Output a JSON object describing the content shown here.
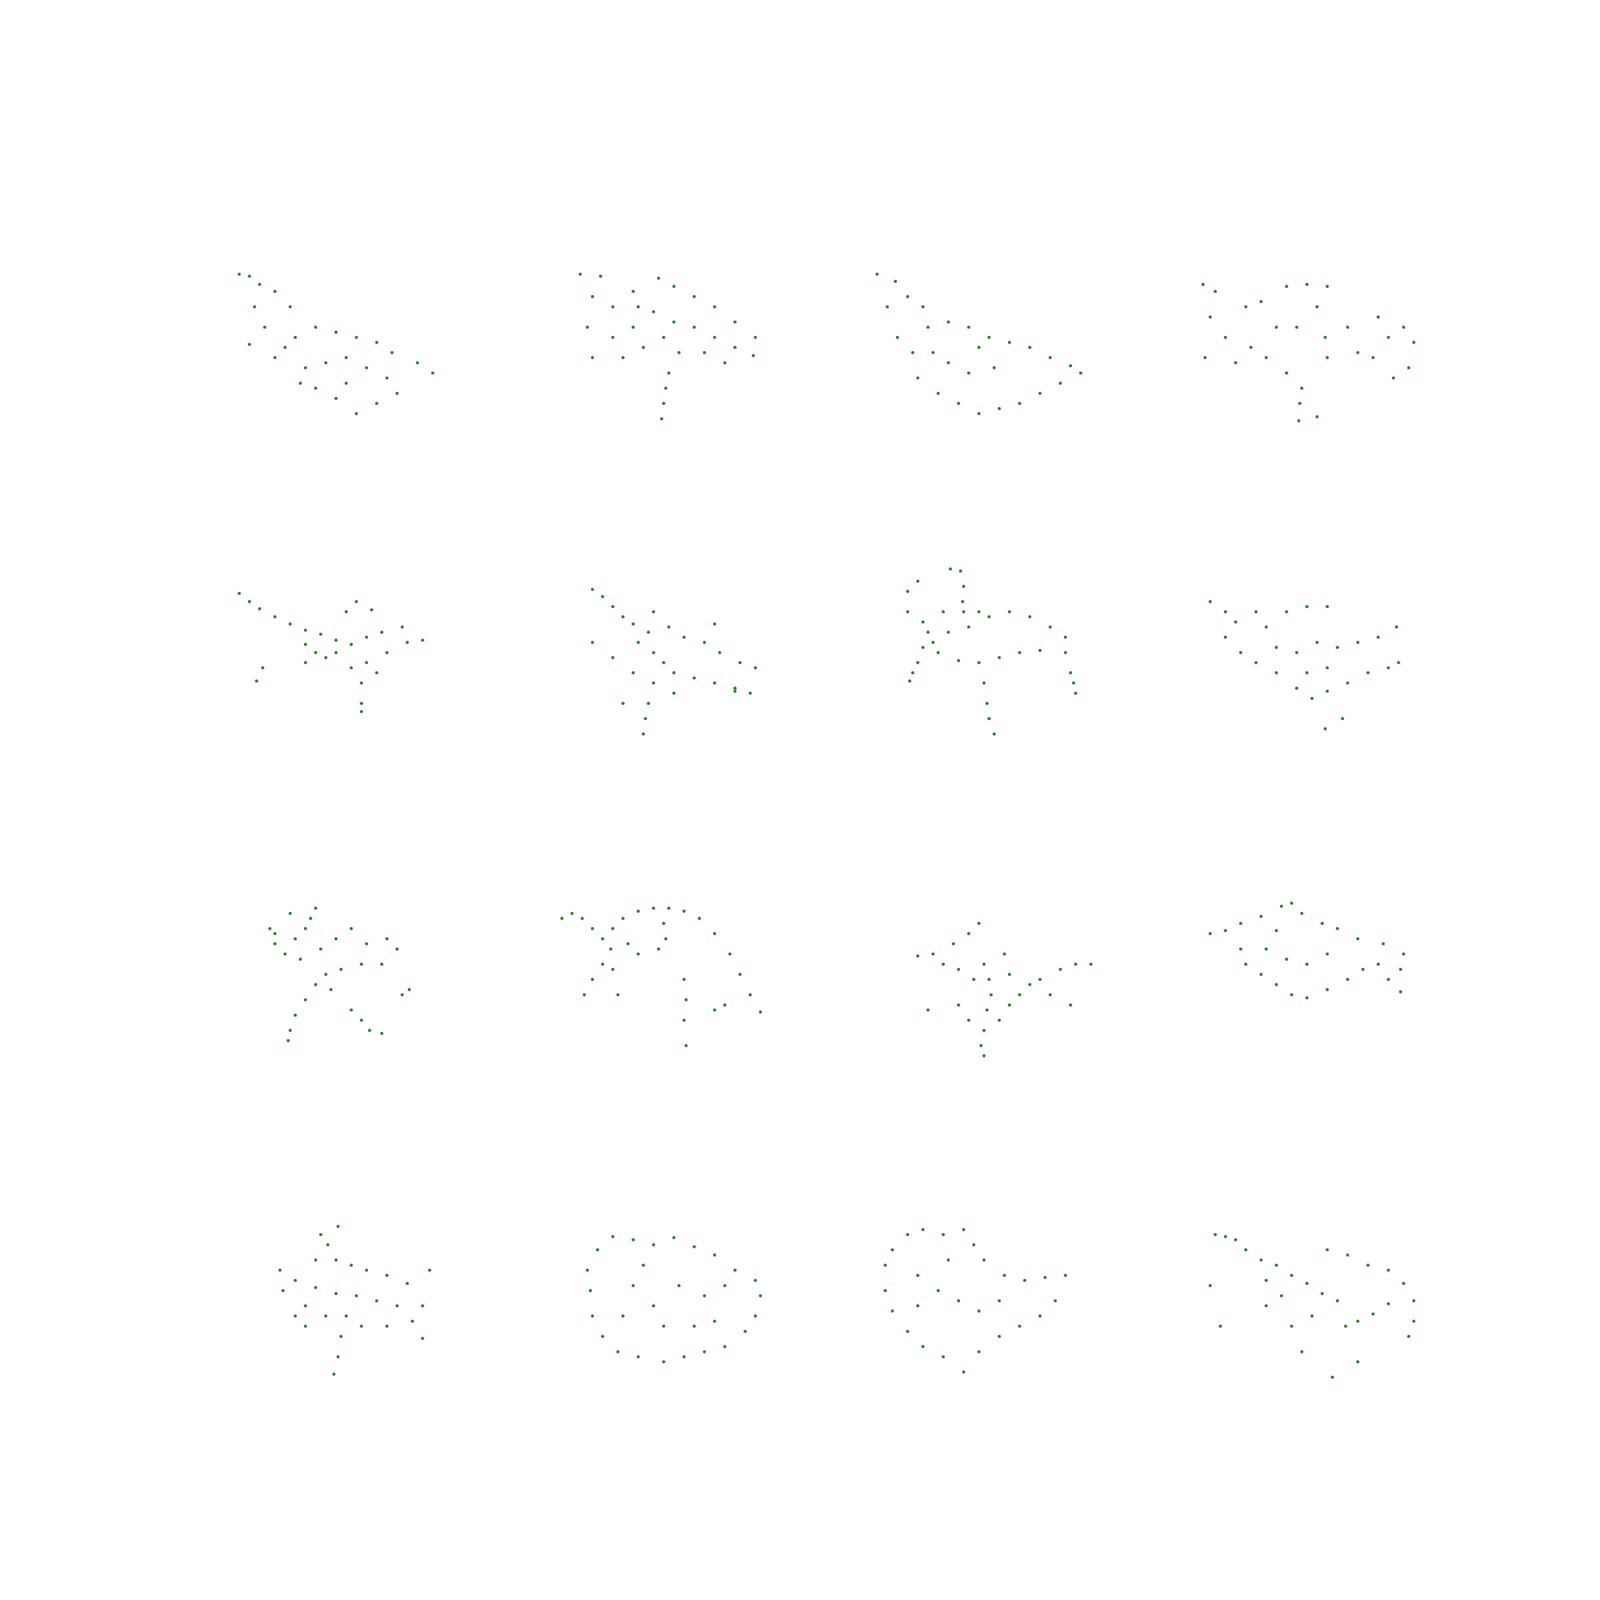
{
  "chart_data": [
    {
      "type": "scatter",
      "color": "#007000",
      "marker": "circle",
      "tick_labels": false,
      "xlim": [
        220,
        440
      ],
      "ylim": [
        445,
        225
      ],
      "x": [
        235,
        245,
        255,
        270,
        285,
        250,
        260,
        245,
        270,
        290,
        310,
        330,
        350,
        370,
        385,
        300,
        320,
        340,
        360,
        380,
        390,
        310,
        330,
        350,
        370,
        295,
        410,
        425,
        340,
        280
      ],
      "y": [
        268,
        270,
        278,
        285,
        300,
        300,
        320,
        337,
        350,
        330,
        320,
        325,
        330,
        335,
        345,
        360,
        355,
        350,
        360,
        370,
        385,
        380,
        390,
        405,
        395,
        375,
        355,
        365,
        375,
        340
      ]
    },
    {
      "type": "scatter",
      "color": "#007000",
      "marker": "circle",
      "tick_labels": false,
      "xlim": [
        545,
        765
      ],
      "ylim": [
        445,
        225
      ],
      "x": [
        568,
        588,
        580,
        600,
        620,
        645,
        660,
        680,
        700,
        720,
        740,
        738,
        720,
        700,
        680,
        660,
        640,
        620,
        600,
        580,
        610,
        630,
        650,
        665,
        690,
        710,
        655,
        652,
        650,
        648,
        575,
        625
      ],
      "y": [
        268,
        270,
        290,
        300,
        285,
        272,
        280,
        290,
        300,
        315,
        330,
        348,
        340,
        330,
        320,
        315,
        305,
        320,
        330,
        350,
        350,
        340,
        330,
        345,
        345,
        355,
        365,
        380,
        395,
        410,
        320,
        300
      ]
    },
    {
      "type": "scatter",
      "color": "#007000",
      "marker": "circle",
      "tick_labels": false,
      "xlim": [
        855,
        1075
      ],
      "ylim": [
        445,
        225
      ],
      "x": [
        860,
        878,
        870,
        890,
        905,
        880,
        895,
        910,
        930,
        950,
        970,
        990,
        1010,
        1030,
        1050,
        1060,
        900,
        920,
        940,
        960,
        980,
        1000,
        1020,
        1040,
        930,
        950,
        975,
        960,
        915
      ],
      "y": [
        268,
        275,
        300,
        290,
        300,
        330,
        345,
        320,
        315,
        320,
        330,
        335,
        340,
        350,
        358,
        365,
        370,
        385,
        395,
        405,
        400,
        395,
        385,
        375,
        355,
        365,
        360,
        340,
        345
      ]
    },
    {
      "type": "scatter",
      "color": "#007000",
      "marker": "circle",
      "tick_labels": false,
      "xlim": [
        1175,
        1395
      ],
      "ylim": [
        445,
        225
      ],
      "x": [
        1178,
        1190,
        1185,
        1180,
        1200,
        1220,
        1235,
        1260,
        1280,
        1300,
        1250,
        1270,
        1290,
        1298,
        1300,
        1320,
        1330,
        1350,
        1360,
        1375,
        1385,
        1380,
        1365,
        1345,
        1240,
        1225,
        1275,
        1273,
        1272,
        1290,
        1260,
        1210
      ],
      "y": [
        278,
        285,
        310,
        350,
        330,
        300,
        295,
        280,
        278,
        280,
        320,
        320,
        300,
        330,
        350,
        320,
        345,
        310,
        330,
        320,
        335,
        360,
        370,
        350,
        350,
        340,
        380,
        395,
        412,
        408,
        365,
        355
      ]
    },
    {
      "type": "scatter",
      "color": "#007000",
      "marker": "circle",
      "tick_labels": false,
      "xlim": [
        220,
        440
      ],
      "ylim": [
        755,
        535
      ],
      "x": [
        235,
        245,
        255,
        270,
        285,
        300,
        315,
        330,
        345,
        360,
        375,
        395,
        415,
        400,
        380,
        360,
        345,
        330,
        320,
        300,
        340,
        350,
        365,
        370,
        355,
        355,
        355,
        258,
        252,
        300,
        310
      ],
      "y": [
        582,
        590,
        597,
        605,
        612,
        618,
        622,
        628,
        632,
        625,
        620,
        615,
        628,
        630,
        640,
        650,
        655,
        640,
        645,
        632,
        600,
        590,
        598,
        660,
        670,
        690,
        698,
        655,
        668,
        650,
        640
      ]
    },
    {
      "type": "scatter",
      "color": "#007000",
      "marker": "circle",
      "tick_labels": false,
      "xlim": [
        545,
        765
      ],
      "ylim": [
        755,
        535
      ],
      "x": [
        580,
        590,
        600,
        610,
        620,
        635,
        625,
        640,
        650,
        660,
        680,
        700,
        720,
        735,
        740,
        725,
        705,
        690,
        670,
        655,
        640,
        580,
        600,
        620,
        640,
        635,
        632,
        630,
        610,
        700,
        720,
        660
      ],
      "y": [
        578,
        585,
        595,
        605,
        612,
        620,
        630,
        640,
        650,
        660,
        665,
        670,
        675,
        680,
        655,
        650,
        640,
        630,
        625,
        615,
        600,
        630,
        645,
        660,
        670,
        690,
        705,
        720,
        690,
        612,
        678,
        680
      ]
    },
    {
      "type": "scatter",
      "color": "#007000",
      "marker": "circle",
      "tick_labels": false,
      "xlim": [
        855,
        1075
      ],
      "ylim": [
        755,
        535
      ],
      "x": [
        932,
        942,
        945,
        944,
        945,
        890,
        900,
        890,
        905,
        910,
        915,
        920,
        905,
        900,
        895,
        892,
        930,
        950,
        970,
        990,
        1010,
        1030,
        1045,
        1045,
        1020,
        1000,
        980,
        960,
        940,
        1050,
        1053,
        1055,
        965,
        968,
        970,
        975,
        960,
        925
      ],
      "y": [
        558,
        560,
        575,
        590,
        600,
        580,
        570,
        600,
        610,
        620,
        630,
        640,
        635,
        650,
        660,
        668,
        620,
        615,
        605,
        600,
        605,
        615,
        625,
        640,
        638,
        640,
        645,
        650,
        648,
        660,
        670,
        680,
        670,
        690,
        705,
        720,
        600,
        600
      ]
    },
    {
      "type": "scatter",
      "color": "#007000",
      "marker": "circle",
      "tick_labels": false,
      "xlim": [
        1175,
        1395
      ],
      "ylim": [
        755,
        535
      ],
      "x": [
        1185,
        1200,
        1210,
        1200,
        1215,
        1230,
        1250,
        1270,
        1285,
        1300,
        1320,
        1340,
        1360,
        1370,
        1368,
        1350,
        1330,
        1310,
        1290,
        1270,
        1250,
        1240,
        1260,
        1280,
        1300,
        1300,
        1280,
        1315,
        1298,
        1230
      ],
      "y": [
        590,
        600,
        610,
        625,
        640,
        650,
        660,
        675,
        685,
        678,
        670,
        660,
        655,
        650,
        615,
        625,
        630,
        635,
        630,
        640,
        635,
        615,
        600,
        595,
        595,
        655,
        660,
        705,
        715,
        600
      ]
    },
    {
      "type": "scatter",
      "color": "#007000",
      "marker": "circle",
      "tick_labels": false,
      "xlim": [
        220,
        440
      ],
      "ylim": [
        1065,
        845
      ],
      "x": [
        265,
        270,
        280,
        290,
        300,
        310,
        305,
        285,
        295,
        315,
        330,
        345,
        360,
        380,
        390,
        375,
        355,
        335,
        320,
        310,
        300,
        290,
        285,
        283,
        345,
        355,
        363,
        375,
        402,
        395,
        325,
        270
      ],
      "y": [
        910,
        925,
        935,
        920,
        910,
        890,
        900,
        895,
        940,
        930,
        920,
        910,
        925,
        920,
        930,
        945,
        945,
        950,
        955,
        965,
        980,
        995,
        1010,
        1020,
        990,
        1000,
        1010,
        1013,
        970,
        975,
        970,
        915
      ]
    },
    {
      "type": "scatter",
      "color": "#007000",
      "marker": "circle",
      "tick_labels": false,
      "xlim": [
        545,
        765
      ],
      "ylim": [
        1065,
        845
      ],
      "x": [
        560,
        570,
        580,
        590,
        598,
        590,
        580,
        572,
        600,
        610,
        625,
        640,
        655,
        670,
        685,
        700,
        715,
        725,
        735,
        745,
        650,
        652,
        645,
        625,
        615,
        600,
        605,
        670,
        672,
        670,
        672,
        710,
        700,
        550
      ],
      "y": [
        895,
        900,
        910,
        920,
        930,
        945,
        960,
        975,
        910,
        900,
        893,
        890,
        890,
        893,
        900,
        915,
        935,
        955,
        975,
        992,
        905,
        920,
        930,
        935,
        925,
        950,
        975,
        960,
        980,
        1000,
        1025,
        985,
        990,
        900
      ]
    },
    {
      "type": "scatter",
      "color": "#007000",
      "marker": "circle",
      "tick_labels": false,
      "xlim": [
        855,
        1075
      ],
      "ylim": [
        1065,
        845
      ],
      "x": [
        960,
        950,
        935,
        915,
        900,
        910,
        940,
        955,
        965,
        970,
        972,
        968,
        965,
        962,
        965,
        980,
        990,
        1000,
        1020,
        1040,
        1055,
        1070,
        1050,
        1030,
        1010,
        990,
        985,
        940,
        950,
        925
      ],
      "y": [
        905,
        915,
        925,
        935,
        937,
        990,
        950,
        960,
        945,
        960,
        975,
        990,
        1010,
        1025,
        1035,
        1000,
        985,
        975,
        960,
        950,
        945,
        945,
        985,
        975,
        965,
        955,
        935,
        985,
        1000,
        945
      ]
    },
    {
      "type": "scatter",
      "color": "#007000",
      "marker": "circle",
      "tick_labels": false,
      "xlim": [
        1175,
        1395
      ],
      "ylim": [
        1065,
        845
      ],
      "x": [
        1185,
        1200,
        1215,
        1235,
        1255,
        1265,
        1275,
        1295,
        1310,
        1330,
        1355,
        1375,
        1372,
        1360,
        1372,
        1350,
        1335,
        1320,
        1300,
        1280,
        1265,
        1250,
        1235,
        1220,
        1215,
        1240,
        1260,
        1280,
        1300,
        1250
      ],
      "y": [
        915,
        912,
        905,
        898,
        888,
        885,
        895,
        905,
        910,
        920,
        925,
        935,
        950,
        960,
        972,
        945,
        950,
        960,
        970,
        978,
        975,
        965,
        955,
        945,
        930,
        930,
        940,
        945,
        935,
        912
      ]
    },
    {
      "type": "scatter",
      "color": "#007000",
      "marker": "circle",
      "tick_labels": false,
      "xlim": [
        220,
        440
      ],
      "ylim": [
        1385,
        1165
      ],
      "x": [
        332,
        315,
        322,
        310,
        330,
        345,
        360,
        380,
        400,
        422,
        415,
        405,
        415,
        390,
        370,
        350,
        330,
        310,
        290,
        275,
        278,
        290,
        300,
        320,
        340,
        335,
        332,
        328,
        355,
        380,
        300
      ],
      "y": [
        1202,
        1210,
        1220,
        1235,
        1235,
        1240,
        1245,
        1250,
        1258,
        1245,
        1280,
        1295,
        1312,
        1280,
        1275,
        1270,
        1268,
        1262,
        1255,
        1245,
        1265,
        1290,
        1300,
        1290,
        1290,
        1310,
        1330,
        1347,
        1300,
        1300,
        1280
      ]
    },
    {
      "type": "scatter",
      "color": "#007000",
      "marker": "circle",
      "tick_labels": false,
      "xlim": [
        545,
        765
      ],
      "ylim": [
        1385,
        1165
      ],
      "x": [
        575,
        585,
        600,
        620,
        640,
        660,
        680,
        700,
        720,
        740,
        745,
        740,
        730,
        710,
        690,
        670,
        650,
        625,
        605,
        590,
        580,
        578,
        620,
        640,
        665,
        690,
        700,
        650,
        610,
        680,
        630,
        710
      ],
      "y": [
        1245,
        1225,
        1212,
        1215,
        1220,
        1213,
        1222,
        1230,
        1245,
        1255,
        1270,
        1290,
        1305,
        1320,
        1325,
        1330,
        1335,
        1330,
        1325,
        1310,
        1290,
        1265,
        1260,
        1280,
        1260,
        1270,
        1295,
        1300,
        1290,
        1300,
        1240,
        1260
      ]
    },
    {
      "type": "scatter",
      "color": "#007000",
      "marker": "circle",
      "tick_labels": false,
      "xlim": [
        855,
        1075
      ],
      "ylim": [
        1385,
        1165
      ],
      "x": [
        868,
        875,
        890,
        905,
        925,
        945,
        955,
        965,
        985,
        1005,
        1025,
        1045,
        1035,
        1020,
        1000,
        980,
        960,
        945,
        925,
        905,
        890,
        875,
        868,
        900,
        920,
        940,
        960,
        980,
        930,
        900
      ],
      "y": [
        1240,
        1225,
        1210,
        1205,
        1210,
        1205,
        1220,
        1235,
        1250,
        1255,
        1252,
        1250,
        1275,
        1290,
        1300,
        1310,
        1325,
        1345,
        1330,
        1320,
        1305,
        1285,
        1265,
        1250,
        1265,
        1275,
        1285,
        1275,
        1235,
        1280
      ]
    },
    {
      "type": "scatter",
      "color": "#007000",
      "marker": "circle",
      "tick_labels": false,
      "xlim": [
        1175,
        1395
      ],
      "ylim": [
        1385,
        1165
      ],
      "x": [
        1190,
        1200,
        1210,
        1220,
        1235,
        1250,
        1265,
        1280,
        1295,
        1310,
        1300,
        1320,
        1340,
        1360,
        1375,
        1385,
        1385,
        1380,
        1318,
        1330,
        1345,
        1360,
        1240,
        1255,
        1265,
        1275,
        1305,
        1330,
        1195,
        1185,
        1285,
        1240
      ],
      "y": [
        1210,
        1212,
        1215,
        1225,
        1235,
        1240,
        1250,
        1258,
        1268,
        1275,
        1225,
        1230,
        1240,
        1245,
        1258,
        1275,
        1295,
        1310,
        1300,
        1295,
        1288,
        1278,
        1280,
        1270,
        1300,
        1325,
        1350,
        1335,
        1300,
        1260,
        1290,
        1255
      ]
    }
  ]
}
